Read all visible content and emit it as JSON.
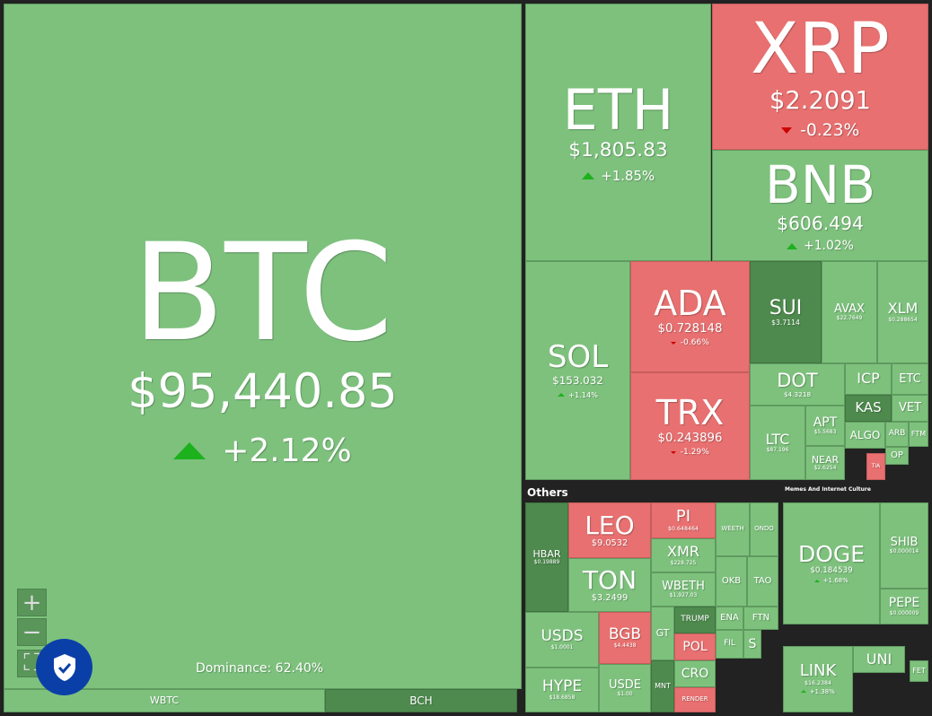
{
  "dominance": "Dominance: 62.40%",
  "sections": [
    "Others",
    "Memes And Internet Culture"
  ],
  "tiles": [
    {
      "symbol": "BTC",
      "price": "$95,440.85",
      "change": "+2.12%"
    },
    {
      "symbol": "WBTC"
    },
    {
      "symbol": "BCH"
    },
    {
      "symbol": "ETH",
      "price": "$1,805.83",
      "change": "+1.85%"
    },
    {
      "symbol": "XRP",
      "price": "$2.2091",
      "change": "-0.23%"
    },
    {
      "symbol": "BNB",
      "price": "$606.494",
      "change": "+1.02%"
    },
    {
      "symbol": "SOL",
      "price": "$153.032",
      "change": "+1.14%"
    },
    {
      "symbol": "ADA",
      "price": "$0.728148",
      "change": "-0.66%"
    },
    {
      "symbol": "TRX",
      "price": "$0.243896",
      "change": "-1.29%"
    },
    {
      "symbol": "SUI",
      "price": "$3.7114"
    },
    {
      "symbol": "AVAX",
      "price": "$22.7649"
    },
    {
      "symbol": "XLM",
      "price": "$0.288654"
    },
    {
      "symbol": "DOT",
      "price": "$4.3218"
    },
    {
      "symbol": "ICP"
    },
    {
      "symbol": "ETC"
    },
    {
      "symbol": "KAS"
    },
    {
      "symbol": "VET"
    },
    {
      "symbol": "LTC",
      "price": "$87.196"
    },
    {
      "symbol": "APT",
      "price": "$5.5683"
    },
    {
      "symbol": "NEAR",
      "price": "$2.6254"
    },
    {
      "symbol": "ALGO"
    },
    {
      "symbol": "ARB"
    },
    {
      "symbol": "FTM"
    },
    {
      "symbol": "OP"
    },
    {
      "symbol": "TIA"
    },
    {
      "symbol": "HBAR",
      "price": "$0.19889"
    },
    {
      "symbol": "LEO",
      "price": "$9.0532"
    },
    {
      "symbol": "PI",
      "price": "$0.648464"
    },
    {
      "symbol": "WEETH"
    },
    {
      "symbol": "ONDO"
    },
    {
      "symbol": "XMR",
      "price": "$228.725"
    },
    {
      "symbol": "TON",
      "price": "$3.2499"
    },
    {
      "symbol": "WBETH",
      "price": "$1,927.03"
    },
    {
      "symbol": "OKB"
    },
    {
      "symbol": "TAO"
    },
    {
      "symbol": "USDS",
      "price": "$1.0001"
    },
    {
      "symbol": "BGB",
      "price": "$4.4438"
    },
    {
      "symbol": "GT"
    },
    {
      "symbol": "TRUMP"
    },
    {
      "symbol": "ENA"
    },
    {
      "symbol": "FTN"
    },
    {
      "symbol": "POL"
    },
    {
      "symbol": "FIL"
    },
    {
      "symbol": "S"
    },
    {
      "symbol": "HYPE",
      "price": "$18.6858"
    },
    {
      "symbol": "USDE",
      "price": "$1.00"
    },
    {
      "symbol": "MNT"
    },
    {
      "symbol": "CRO"
    },
    {
      "symbol": "RENDER"
    },
    {
      "symbol": "DOGE",
      "price": "$0.184539",
      "change": "+1.68%"
    },
    {
      "symbol": "SHIB",
      "price": "$0.000014"
    },
    {
      "symbol": "PEPE",
      "price": "$0.000009"
    },
    {
      "symbol": "LINK",
      "price": "$16.2384",
      "change": "+1.38%"
    },
    {
      "symbol": "UNI"
    },
    {
      "symbol": "FET"
    }
  ]
}
